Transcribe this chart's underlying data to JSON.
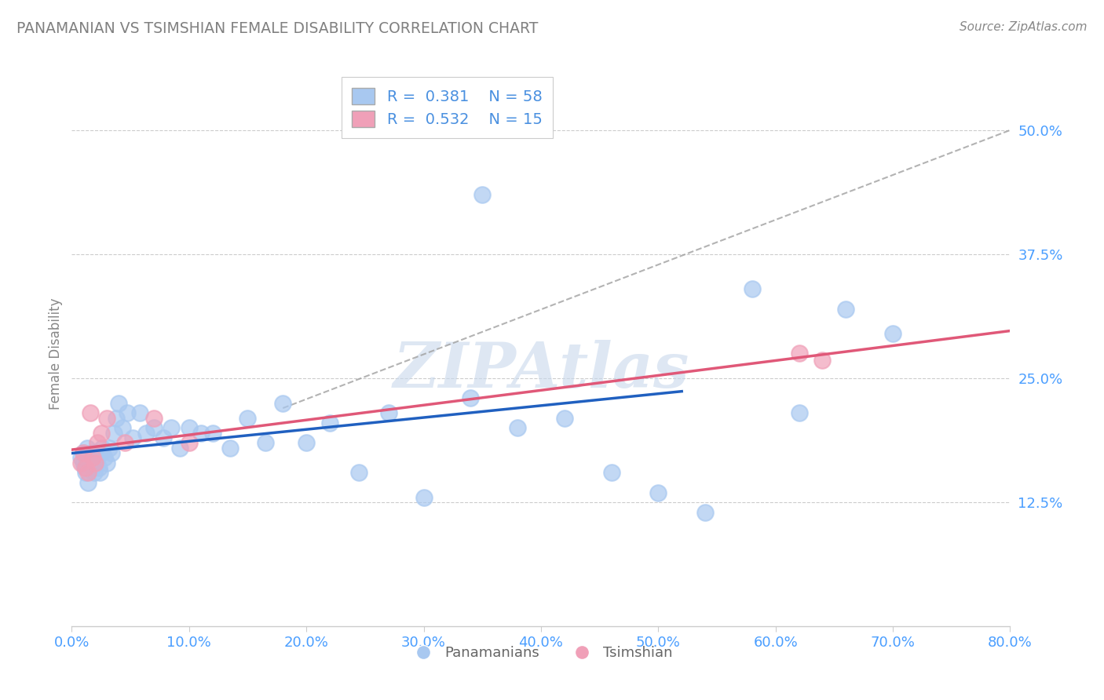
{
  "title": "PANAMANIAN VS TSIMSHIAN FEMALE DISABILITY CORRELATION CHART",
  "source": "Source: ZipAtlas.com",
  "pan_label": "Panamanians",
  "tsim_label": "Tsimshian",
  "ylabel": "Female Disability",
  "xlim": [
    0.0,
    0.8
  ],
  "ylim": [
    0.0,
    0.55
  ],
  "xticks": [
    0.0,
    0.1,
    0.2,
    0.3,
    0.4,
    0.5,
    0.6,
    0.7,
    0.8
  ],
  "yticks_right": [
    0.125,
    0.25,
    0.375,
    0.5
  ],
  "ytick_labels_right": [
    "12.5%",
    "25.0%",
    "37.5%",
    "50.0%"
  ],
  "xtick_labels": [
    "0.0%",
    "10.0%",
    "20.0%",
    "30.0%",
    "40.0%",
    "50.0%",
    "60.0%",
    "70.0%",
    "80.0%"
  ],
  "pan_R": 0.381,
  "pan_N": 58,
  "tsim_R": 0.532,
  "tsim_N": 15,
  "pan_color": "#a8c8f0",
  "tsim_color": "#f0a0b8",
  "pan_line_color": "#2060c0",
  "tsim_line_color": "#e05878",
  "watermark_color": "#c8d8ec",
  "watermark": "ZIPAtlas",
  "pan_x": [
    0.008,
    0.01,
    0.01,
    0.011,
    0.012,
    0.013,
    0.014,
    0.015,
    0.016,
    0.017,
    0.018,
    0.019,
    0.02,
    0.021,
    0.022,
    0.023,
    0.024,
    0.025,
    0.026,
    0.028,
    0.03,
    0.032,
    0.034,
    0.036,
    0.038,
    0.04,
    0.043,
    0.047,
    0.052,
    0.058,
    0.063,
    0.07,
    0.078,
    0.085,
    0.092,
    0.1,
    0.11,
    0.12,
    0.135,
    0.15,
    0.165,
    0.18,
    0.2,
    0.22,
    0.245,
    0.27,
    0.3,
    0.34,
    0.38,
    0.42,
    0.46,
    0.5,
    0.54,
    0.58,
    0.62,
    0.66,
    0.7,
    0.35
  ],
  "pan_y": [
    0.17,
    0.165,
    0.175,
    0.16,
    0.155,
    0.18,
    0.145,
    0.17,
    0.165,
    0.175,
    0.16,
    0.155,
    0.165,
    0.175,
    0.17,
    0.16,
    0.155,
    0.175,
    0.18,
    0.17,
    0.165,
    0.18,
    0.175,
    0.195,
    0.21,
    0.225,
    0.2,
    0.215,
    0.19,
    0.215,
    0.195,
    0.2,
    0.19,
    0.2,
    0.18,
    0.2,
    0.195,
    0.195,
    0.18,
    0.21,
    0.185,
    0.225,
    0.185,
    0.205,
    0.155,
    0.215,
    0.13,
    0.23,
    0.2,
    0.21,
    0.155,
    0.135,
    0.115,
    0.34,
    0.215,
    0.32,
    0.295,
    0.435
  ],
  "tsim_x": [
    0.008,
    0.01,
    0.012,
    0.014,
    0.016,
    0.018,
    0.02,
    0.022,
    0.025,
    0.03,
    0.045,
    0.07,
    0.1,
    0.62,
    0.64
  ],
  "tsim_y": [
    0.165,
    0.175,
    0.16,
    0.155,
    0.215,
    0.17,
    0.165,
    0.185,
    0.195,
    0.21,
    0.185,
    0.21,
    0.185,
    0.275,
    0.268
  ],
  "pan_line_xrange": [
    0.0,
    0.52
  ],
  "tsim_line_xrange": [
    0.0,
    0.8
  ],
  "diag_line_xrange": [
    0.18,
    0.8
  ],
  "diag_line_yrange": [
    0.22,
    0.5
  ]
}
